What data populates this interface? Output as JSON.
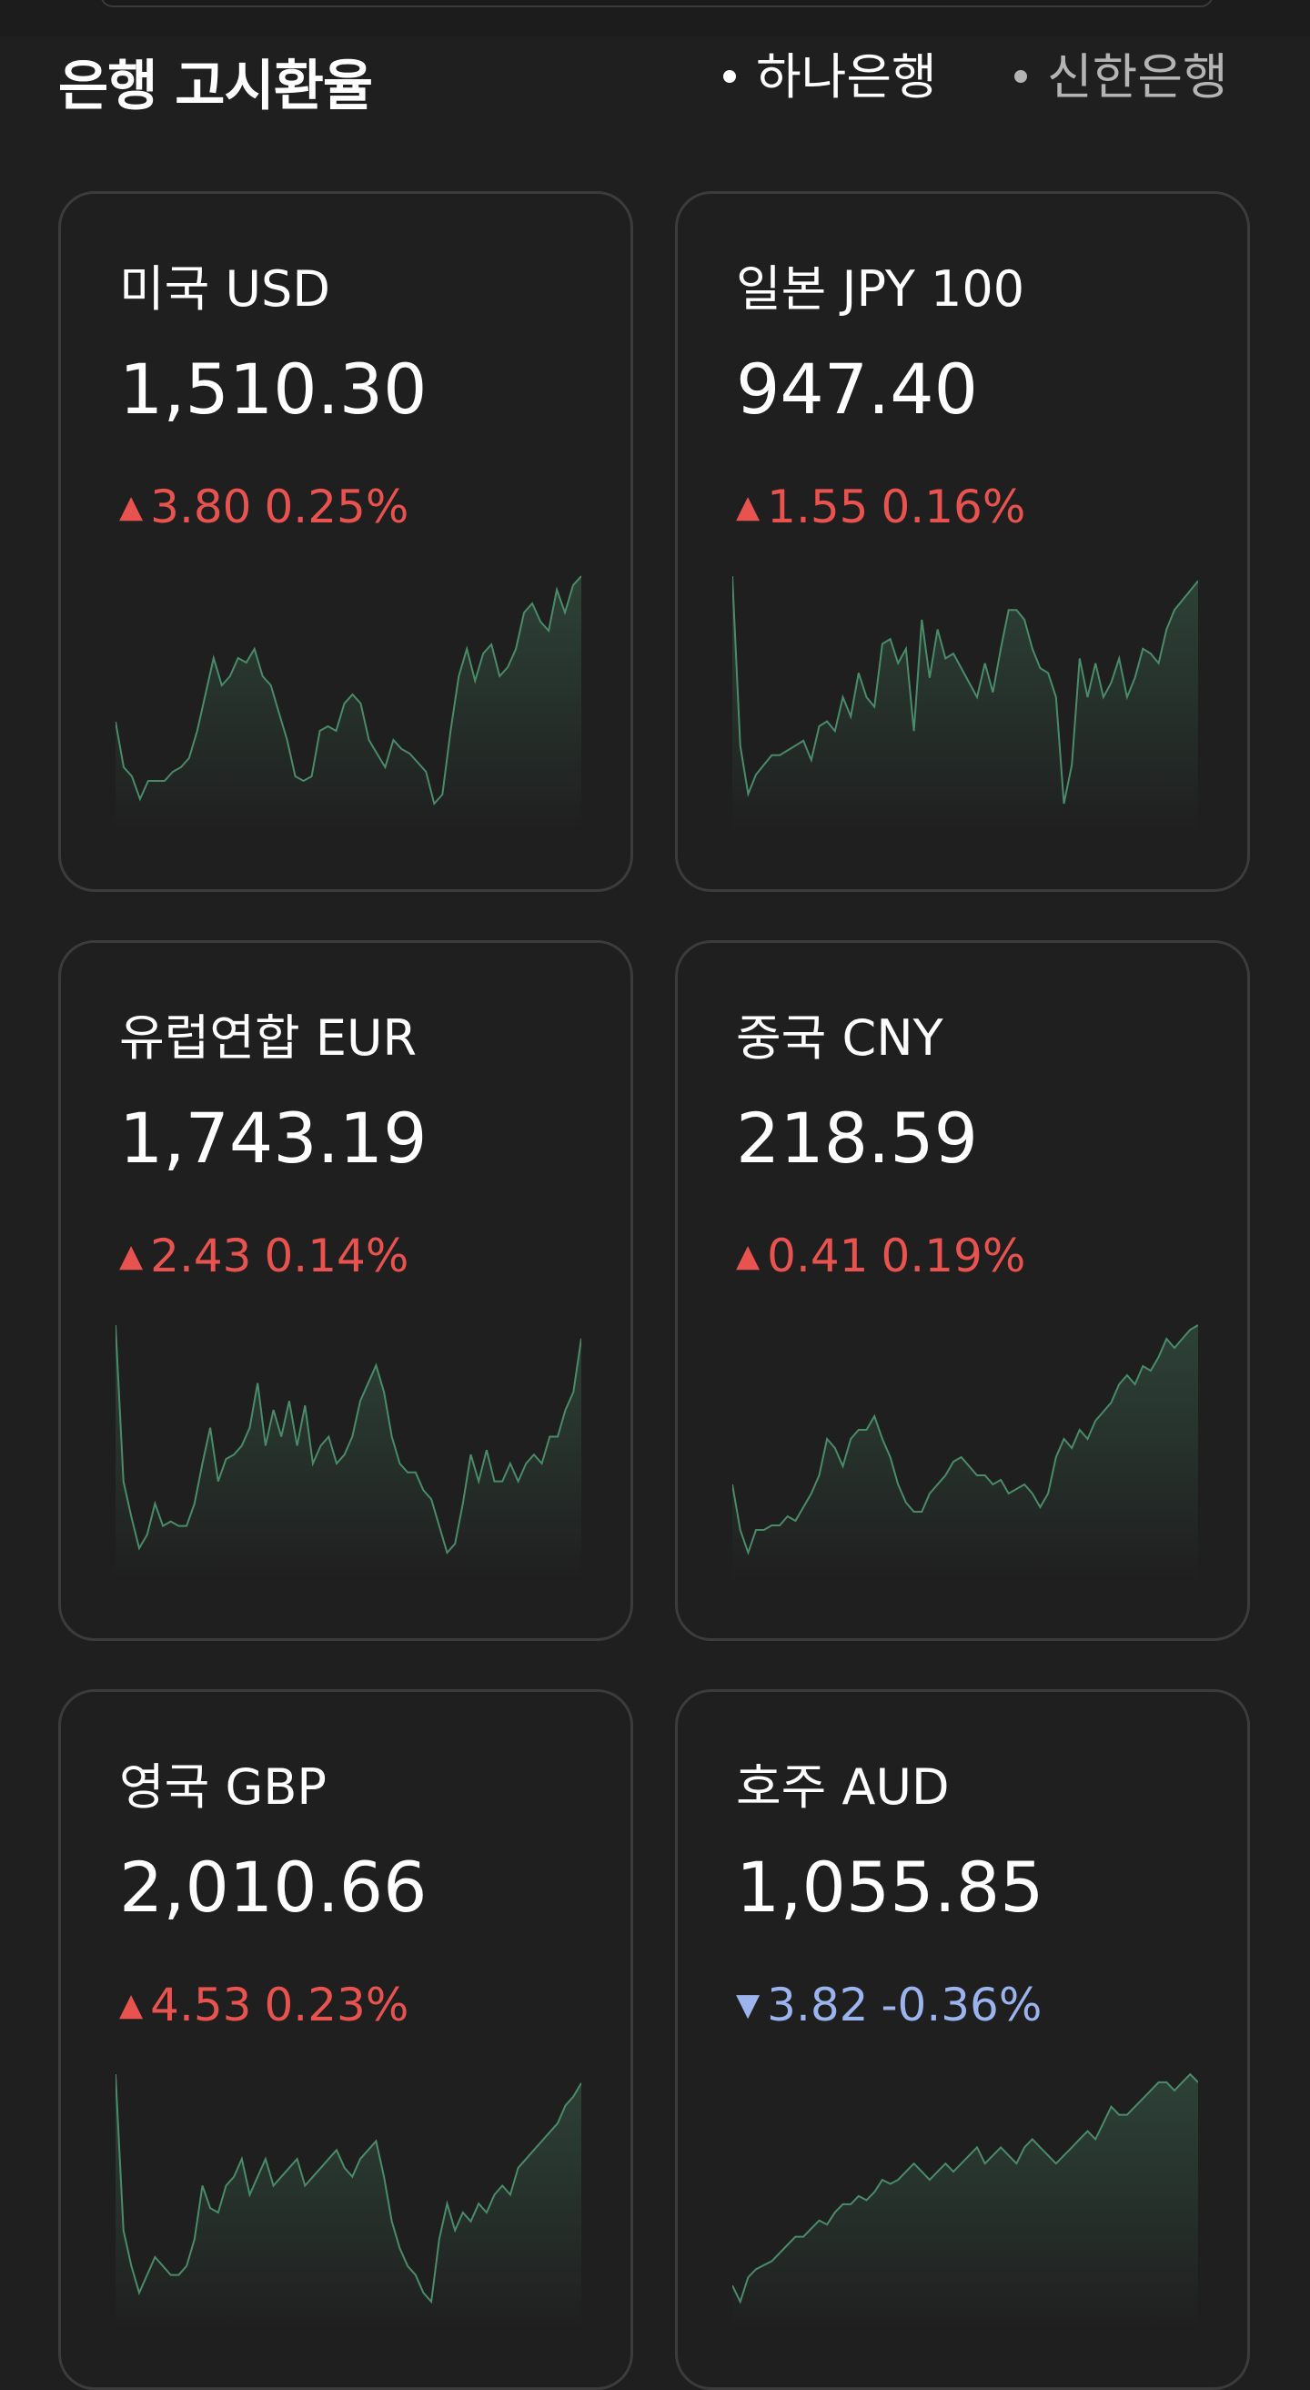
{
  "header": {
    "title": "은행 고시환율",
    "tabs": [
      {
        "label": "하나은행",
        "active": true
      },
      {
        "label": "신한은행",
        "active": false
      }
    ]
  },
  "colors": {
    "background": "#1f1f1f",
    "card_border": "#3c3c3c",
    "up": "#e8534f",
    "down": "#9bb4ee",
    "spark_line": "#4a8c6a"
  },
  "cards": [
    {
      "name": "미국 USD",
      "rate": "1,510.30",
      "direction": "up",
      "arrow": "▲",
      "change": "3.80",
      "percent": "0.25%",
      "trend": [
        62,
        52,
        50,
        45,
        49,
        49,
        49,
        51,
        52,
        54,
        60,
        68,
        76,
        70,
        72,
        76,
        75,
        78,
        72,
        70,
        64,
        58,
        50,
        49,
        50,
        60,
        61,
        60,
        66,
        68,
        66,
        58,
        55,
        52,
        58,
        56,
        55,
        53,
        51,
        44,
        46,
        60,
        72,
        78,
        71,
        77,
        79,
        72,
        74,
        78,
        86,
        88,
        84,
        82,
        91,
        86,
        92,
        94
      ]
    },
    {
      "name": "일본 JPY 100",
      "rate": "947.40",
      "direction": "up",
      "arrow": "▲",
      "change": "1.55",
      "percent": "0.16%",
      "trend": [
        95,
        60,
        50,
        54,
        56,
        58,
        58,
        59,
        60,
        61,
        57,
        64,
        65,
        63,
        70,
        66,
        75,
        70,
        68,
        81,
        82,
        77,
        80,
        63,
        86,
        74,
        84,
        78,
        79,
        76,
        73,
        70,
        77,
        71,
        80,
        88,
        88,
        86,
        80,
        76,
        75,
        70,
        48,
        56,
        78,
        70,
        77,
        70,
        73,
        78,
        70,
        74,
        80,
        79,
        77,
        84,
        88,
        90,
        92,
        94
      ]
    },
    {
      "name": "유럽연합 EUR",
      "rate": "1,743.19",
      "direction": "up",
      "arrow": "▲",
      "change": "2.43",
      "percent": "0.14%",
      "trend": [
        95,
        60,
        52,
        45,
        48,
        55,
        50,
        51,
        50,
        50,
        55,
        64,
        72,
        60,
        65,
        66,
        68,
        72,
        82,
        68,
        76,
        70,
        78,
        68,
        77,
        64,
        68,
        70,
        64,
        66,
        70,
        78,
        82,
        86,
        80,
        70,
        64,
        62,
        62,
        58,
        56,
        50,
        44,
        46,
        55,
        66,
        60,
        67,
        60,
        60,
        64,
        60,
        64,
        66,
        64,
        70,
        70,
        76,
        80,
        92
      ]
    },
    {
      "name": "중국 CNY",
      "rate": "218.59",
      "direction": "up",
      "arrow": "▲",
      "change": "0.41",
      "percent": "0.19%",
      "trend": [
        60,
        50,
        45,
        50,
        50,
        51,
        51,
        53,
        52,
        55,
        58,
        62,
        70,
        68,
        64,
        70,
        72,
        72,
        75,
        70,
        66,
        60,
        56,
        54,
        54,
        58,
        60,
        62,
        65,
        66,
        64,
        62,
        62,
        60,
        61,
        58,
        59,
        60,
        58,
        55,
        58,
        66,
        70,
        68,
        72,
        70,
        74,
        76,
        78,
        82,
        84,
        82,
        86,
        85,
        88,
        92,
        90,
        92,
        94,
        95
      ]
    },
    {
      "name": "영국 GBP",
      "rate": "2,010.66",
      "direction": "up",
      "arrow": "▲",
      "change": "4.53",
      "percent": "0.23%",
      "trend": [
        95,
        60,
        52,
        46,
        50,
        54,
        52,
        50,
        50,
        52,
        58,
        70,
        65,
        64,
        70,
        72,
        76,
        68,
        72,
        76,
        70,
        72,
        74,
        76,
        70,
        72,
        74,
        76,
        78,
        74,
        72,
        76,
        78,
        80,
        72,
        62,
        56,
        52,
        50,
        46,
        44,
        58,
        66,
        60,
        64,
        62,
        66,
        64,
        68,
        70,
        68,
        74,
        76,
        78,
        80,
        82,
        84,
        88,
        90,
        93
      ]
    },
    {
      "name": "호주 AUD",
      "rate": "1,055.85",
      "direction": "down",
      "arrow": "▼",
      "change": "3.82",
      "percent": "-0.36%",
      "trend": [
        40,
        36,
        42,
        44,
        45,
        46,
        48,
        50,
        52,
        52,
        54,
        56,
        55,
        58,
        60,
        60,
        62,
        61,
        63,
        66,
        65,
        66,
        68,
        70,
        68,
        66,
        68,
        70,
        68,
        70,
        72,
        74,
        70,
        72,
        74,
        72,
        70,
        74,
        76,
        74,
        72,
        70,
        72,
        74,
        76,
        78,
        76,
        80,
        84,
        82,
        82,
        84,
        86,
        88,
        90,
        90,
        88,
        90,
        92,
        90
      ]
    }
  ]
}
